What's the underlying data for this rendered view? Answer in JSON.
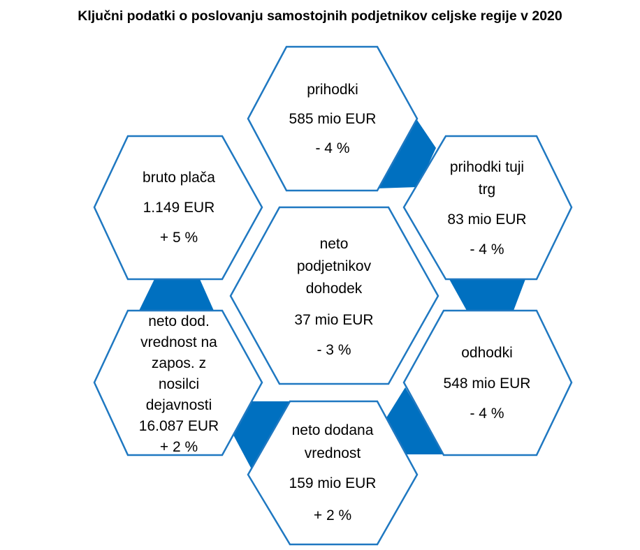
{
  "title": "Ključni podatki o poslovanju samostojnih podjetnikov celjske regije v 2020",
  "colors": {
    "outline": "#1f78c1",
    "connector": "#0070c0"
  },
  "hexagons": {
    "prihodki": {
      "lines": [
        "prihodki",
        "585 mio EUR",
        "- 4 %"
      ]
    },
    "bruto_placa": {
      "lines": [
        "bruto plača",
        "1.149 EUR",
        "+ 5 %"
      ]
    },
    "prihodki_tuji_trg": {
      "lines": [
        "prihodki tuji",
        "trg",
        "83 mio EUR",
        "- 4 %"
      ]
    },
    "neto_podjetnikov_dohodek": {
      "lines": [
        "neto",
        "podjetnikov",
        "dohodek",
        "37 mio EUR",
        "- 3 %"
      ]
    },
    "neto_dod_vrednost_na_zapos": {
      "lines": [
        "neto dod.",
        "vrednost na",
        "zapos. z",
        "nosilci",
        "dejavnosti",
        "16.087 EUR",
        "+ 2 %"
      ]
    },
    "odhodki": {
      "lines": [
        "odhodki",
        "548 mio EUR",
        "- 4 %"
      ]
    },
    "neto_dodana_vrednost": {
      "lines": [
        "neto dodana",
        "vrednost",
        "159 mio EUR",
        "+ 2 %"
      ]
    }
  }
}
